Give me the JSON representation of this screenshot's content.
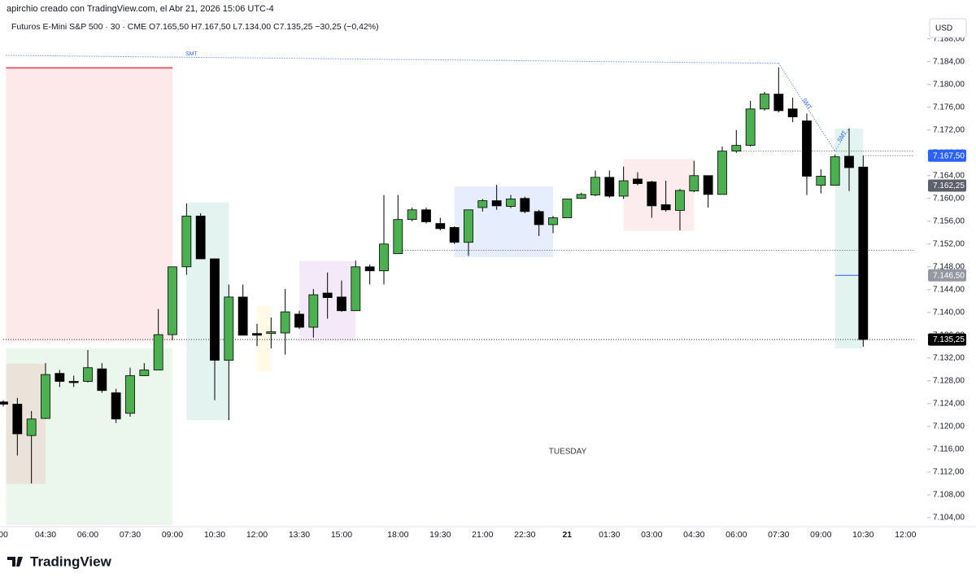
{
  "chart_data": {
    "type": "candlestick",
    "title": "apirchio creado con TradingView.com, el Abr 21, 2026 15:06 UTC-4",
    "subtitle": "Futuros E-Mini S&P 500 · 30 · CME  O7.165,50 H7.167,50 L7.134,00 C7.135,25 −30,25 (−0,42%)",
    "currency": "USD",
    "day_label": "TUESDAY",
    "brand": "TradingView",
    "up_color": "#4caf50",
    "down_color": "#000000",
    "categories": [
      "00",
      null,
      null,
      "04:30",
      null,
      null,
      "06:00",
      null,
      null,
      "07:30",
      null,
      null,
      "09:00",
      null,
      null,
      "10:30",
      null,
      null,
      "12:00",
      null,
      null,
      "13:30",
      null,
      null,
      "15:00",
      null,
      null,
      null,
      "18:00",
      null,
      null,
      "19:30",
      null,
      null,
      "21:00",
      null,
      null,
      "22:30",
      null,
      null,
      "21",
      null,
      null,
      "01:30",
      null,
      null,
      "03:00",
      null,
      null,
      "04:30",
      null,
      null,
      "06:00",
      null,
      null,
      "07:30",
      null,
      null,
      "09:00",
      null,
      null,
      "10:30",
      null,
      null,
      "12:00"
    ],
    "open": [
      7124.3,
      7123.9,
      7118.4,
      7121.4,
      7129.3,
      7127.9,
      7127.9,
      7130.1,
      7125.9,
      7122.3,
      7128.9,
      7129.9,
      7136.1,
      7148.0,
      7156.9,
      7149.4,
      7131.6,
      7142.7,
      7136.3,
      7136.3,
      7136.4,
      7139.7,
      7137.4,
      7143.4,
      7142.7,
      7140.3,
      7148.0,
      7147.3,
      7150.3,
      7156.3,
      7158.0,
      7155.6,
      7154.9,
      7152.3,
      7158.4,
      7159.6,
      7158.6,
      7160.0,
      7157.7,
      7155.4,
      7156.6,
      7160.0,
      7160.6,
      7163.7,
      7160.4,
      7163.4,
      7162.9,
      7158.9,
      7157.9,
      7161.3,
      7164.0,
      7160.7,
      7168.3,
      7169.3,
      7175.7,
      7178.3,
      7175.7,
      7173.6,
      7162.3,
      7162.3,
      7167.4,
      7165.5,
      null,
      null,
      null
    ],
    "high": [
      7124.6,
      7125.0,
      7122.7,
      7131.1,
      7129.9,
      7128.9,
      7133.4,
      7131.1,
      7126.6,
      7130.3,
      7131.1,
      7140.6,
      7148.0,
      7159.1,
      7157.4,
      7149.4,
      7144.9,
      7144.9,
      7138.0,
      7139.1,
      7144.1,
      7140.3,
      7144.1,
      7147.0,
      7145.6,
      7149.1,
      7148.4,
      7160.6,
      7160.6,
      7158.4,
      7158.4,
      7156.6,
      7155.1,
      7158.0,
      7159.9,
      7162.4,
      7160.6,
      7160.3,
      7158.0,
      7156.9,
      7159.9,
      7161.0,
      7164.9,
      7164.9,
      7165.6,
      7164.6,
      7163.1,
      7163.1,
      7161.7,
      7166.6,
      7164.0,
      7169.1,
      7172.0,
      7177.1,
      7178.7,
      7183.0,
      7177.7,
      7174.9,
      7165.1,
      7167.7,
      7172.3,
      7167.5,
      null,
      null,
      null
    ],
    "low": [
      7123.5,
      7114.9,
      7110.0,
      7121.3,
      7126.9,
      7126.9,
      7127.7,
      7125.9,
      7120.6,
      7121.7,
      7128.9,
      7129.9,
      7135.1,
      7146.6,
      7149.4,
      7124.6,
      7121.1,
      7136.0,
      7134.1,
      7133.7,
      7132.6,
      7137.1,
      7135.6,
      7138.9,
      7140.1,
      7140.3,
      7144.9,
      7144.9,
      7150.3,
      7156.0,
      7155.6,
      7154.4,
      7152.0,
      7149.9,
      7157.7,
      7158.0,
      7158.3,
      7157.4,
      7153.4,
      7153.9,
      7156.6,
      7159.9,
      7160.4,
      7160.1,
      7159.9,
      7162.3,
      7156.6,
      7157.7,
      7154.4,
      7161.1,
      7158.4,
      7160.7,
      7168.0,
      7169.1,
      7175.4,
      7175.1,
      7173.4,
      7160.6,
      7160.9,
      7162.3,
      7161.3,
      7134.0,
      null,
      null,
      null
    ],
    "close": [
      7123.9,
      7118.7,
      7121.3,
      7129.1,
      7127.9,
      7127.8,
      7130.3,
      7126.3,
      7121.3,
      7128.9,
      7129.9,
      7136.1,
      7148.0,
      7156.9,
      7149.4,
      7131.6,
      7142.7,
      7136.0,
      7136.0,
      7136.6,
      7140.1,
      7137.4,
      7143.1,
      7142.6,
      7140.3,
      7148.0,
      7147.3,
      7152.0,
      7156.3,
      7158.0,
      7155.9,
      7154.7,
      7152.3,
      7158.0,
      7159.6,
      7158.7,
      7159.9,
      7157.7,
      7155.4,
      7156.6,
      7159.9,
      7160.7,
      7163.7,
      7160.4,
      7163.1,
      7162.6,
      7158.7,
      7158.0,
      7161.4,
      7164.0,
      7160.7,
      7168.3,
      7169.3,
      7175.7,
      7178.3,
      7175.4,
      7174.3,
      7163.9,
      7163.9,
      7167.3,
      7165.4,
      7135.25,
      null,
      null,
      null
    ],
    "ylim": [
      7102.7,
      7189.1
    ],
    "yticks": [
      {
        "value": 7104,
        "label": "7.104,00"
      },
      {
        "value": 7108,
        "label": "7.108,00"
      },
      {
        "value": 7112,
        "label": "7.112,00"
      },
      {
        "value": 7116,
        "label": "7.116,00"
      },
      {
        "value": 7120,
        "label": "7.120,00"
      },
      {
        "value": 7124,
        "label": "7.124,00"
      },
      {
        "value": 7128,
        "label": "7.128,00"
      },
      {
        "value": 7132,
        "label": "7.132,00"
      },
      {
        "value": 7136,
        "label": "7.136,00"
      },
      {
        "value": 7140,
        "label": "7.140,00"
      },
      {
        "value": 7144,
        "label": "7.144,00"
      },
      {
        "value": 7148,
        "label": "7.148,00"
      },
      {
        "value": 7152,
        "label": "7.152,00"
      },
      {
        "value": 7156,
        "label": "7.156,00"
      },
      {
        "value": 7160,
        "label": "7.160,00"
      },
      {
        "value": 7164,
        "label": "7.164,00"
      },
      {
        "value": 7168,
        "label": "7.168,00"
      },
      {
        "value": 7172,
        "label": "7.172,00"
      },
      {
        "value": 7176,
        "label": "7.176,00"
      },
      {
        "value": 7180,
        "label": "7.180,00"
      },
      {
        "value": 7184,
        "label": "7.184,00"
      },
      {
        "value": 7188,
        "label": "7.188,00"
      }
    ],
    "price_tags": [
      {
        "value": 7167.5,
        "label": "7.167,50",
        "color": "#2962ff"
      },
      {
        "value": 7162.25,
        "label": "7.162,25",
        "color": "#5d606b"
      },
      {
        "value": 7146.5,
        "label": "7.146,50",
        "color": "#9598a1"
      },
      {
        "value": 7135.25,
        "label": "7.135,25",
        "color": "#000000"
      }
    ],
    "zones": [
      {
        "x0": 0.2,
        "x1": 12,
        "y0": 7134.9,
        "y1": 7182.9,
        "color": "#fde9ea",
        "edge": "#f23645"
      },
      {
        "x0": 0.2,
        "x1": 12,
        "y0": 7102.7,
        "y1": 7133.7,
        "color": "#ebf6ec"
      },
      {
        "x0": 0.2,
        "x1": 3,
        "y0": 7109.9,
        "y1": 7131.0,
        "color": "#ebe3d9"
      },
      {
        "x0": 13,
        "x1": 16,
        "y0": 7121.1,
        "y1": 7159.3,
        "color": "#e3f3ef"
      },
      {
        "x0": 18,
        "x1": 19,
        "y0": 7129.6,
        "y1": 7141.1,
        "color": "#fffae6"
      },
      {
        "x0": 21,
        "x1": 25,
        "y0": 7134.9,
        "y1": 7149.0,
        "color": "#f3e9f9"
      },
      {
        "x0": 32,
        "x1": 39,
        "y0": 7149.7,
        "y1": 7162.1,
        "color": "#e6edfd"
      },
      {
        "x0": 44,
        "x1": 49,
        "y0": 7154.3,
        "y1": 7166.9,
        "color": "#fdeced"
      },
      {
        "x0": 59,
        "x1": 61,
        "y0": 7133.7,
        "y1": 7172.3,
        "color": "#e3f3ef"
      }
    ],
    "levels": [
      {
        "value": 7168.3,
        "from": 52,
        "to": 64.6,
        "color": "#555555",
        "dash": "1 2"
      },
      {
        "value": 7150.9,
        "from": 28,
        "to": 64.6,
        "color": "#555555",
        "dash": "1 2"
      },
      {
        "value": 7135.25,
        "from": 0,
        "to": 64.6,
        "color": "#333333",
        "dash": "1 2"
      },
      {
        "value": 7167.5,
        "from": 61,
        "to": 64.6,
        "color": "#555555",
        "dash": "1 2"
      },
      {
        "value": 7146.5,
        "from": 59,
        "to": 61,
        "color": "#2962ff",
        "dash": "none"
      }
    ],
    "smt_lines": [
      {
        "label": "SMT",
        "at": 0.24,
        "points": [
          [
            0.2,
            7185.1
          ],
          [
            55,
            7183.7
          ]
        ]
      },
      {
        "label": "SMT",
        "at": 0.5,
        "points": [
          [
            55,
            7183.7
          ],
          [
            59,
            7168.3
          ]
        ]
      },
      {
        "label": "SMT",
        "at": 0.5,
        "points": [
          [
            59,
            7168.3
          ],
          [
            60,
            7172.3
          ]
        ]
      }
    ]
  }
}
